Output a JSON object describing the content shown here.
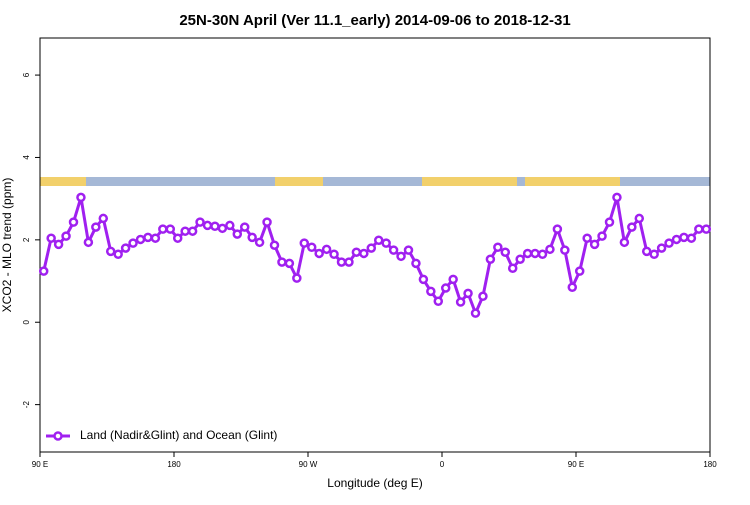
{
  "chart_data": {
    "type": "line",
    "title": "25N-30N April (Ver 11.1_early)   2014-09-06 to 2018-12-31",
    "x_label": "Longitude (deg E)",
    "y_label": "XCO2 - MLO trend (ppm)",
    "x": [
      92.5,
      97.5,
      102.5,
      107.5,
      112.5,
      117.5,
      122.5,
      127.5,
      132.5,
      137.5,
      142.5,
      147.5,
      152.5,
      157.5,
      162.5,
      167.5,
      172.5,
      177.5,
      182.5,
      187.5,
      192.5,
      197.5,
      202.5,
      207.5,
      212.5,
      217.5,
      222.5,
      227.5,
      232.5,
      237.5,
      242.5,
      247.5,
      252.5,
      257.5,
      262.5,
      267.5,
      272.5,
      277.5,
      282.5,
      287.5,
      292.5,
      297.5,
      302.5,
      307.5,
      312.5,
      317.5,
      322.5,
      327.5,
      332.5,
      337.5,
      342.5,
      347.5,
      352.5,
      357.5,
      362.5,
      367.5,
      372.5,
      377.5,
      382.5,
      387.5,
      392.5,
      397.5,
      402.5,
      407.5,
      412.5,
      417.5,
      422.5,
      427.5,
      432.5,
      437.5,
      442.5,
      447.5,
      452.5,
      457.5,
      462.5,
      467.5,
      472.5,
      477.5,
      482.5,
      487.5,
      492.5,
      497.5,
      502.5,
      507.5,
      512.5,
      517.5,
      522.5,
      527.5,
      532.5,
      537.5
    ],
    "series": [
      {
        "name": "Land (Nadir&Glint) and Ocean (Glint)",
        "color": "#a020f0",
        "values": [
          1.24,
          2.04,
          1.89,
          2.09,
          2.43,
          3.03,
          1.94,
          2.31,
          2.52,
          1.72,
          1.65,
          1.8,
          1.92,
          2.01,
          2.06,
          2.04,
          2.26,
          2.26,
          2.04,
          2.21,
          2.21,
          2.43,
          2.35,
          2.33,
          2.28,
          2.35,
          2.14,
          2.31,
          2.06,
          1.94,
          2.43,
          1.87,
          1.46,
          1.43,
          1.07,
          1.92,
          1.82,
          1.67,
          1.77,
          1.65,
          1.46,
          1.46,
          1.7,
          1.67,
          1.8,
          1.99,
          1.92,
          1.75,
          1.6,
          1.75,
          1.43,
          1.04,
          0.75,
          0.51,
          0.83,
          1.04,
          0.49,
          0.7,
          0.22,
          0.63,
          1.53,
          1.82,
          1.7,
          1.31,
          1.53,
          1.67,
          1.67,
          1.65,
          1.77,
          2.26,
          1.75,
          0.85,
          1.24,
          2.04,
          1.89,
          2.09,
          2.43,
          3.03,
          1.94,
          2.31,
          2.52,
          1.72,
          1.65,
          1.8,
          1.92,
          2.01,
          2.06,
          2.04,
          2.26,
          2.26
        ]
      }
    ],
    "xlim": [
      90,
      540
    ],
    "xticks": [
      {
        "value": 90,
        "label": "90 E"
      },
      {
        "value": 180,
        "label": "180"
      },
      {
        "value": 270,
        "label": "90 W"
      },
      {
        "value": 360,
        "label": "0"
      },
      {
        "value": 450,
        "label": "90 E"
      },
      {
        "value": 540,
        "label": "180"
      }
    ],
    "ylim": [
      -3.15,
      6.9
    ],
    "yticks": [
      -2,
      0,
      2,
      4,
      6
    ],
    "legend": "bottom-left"
  }
}
